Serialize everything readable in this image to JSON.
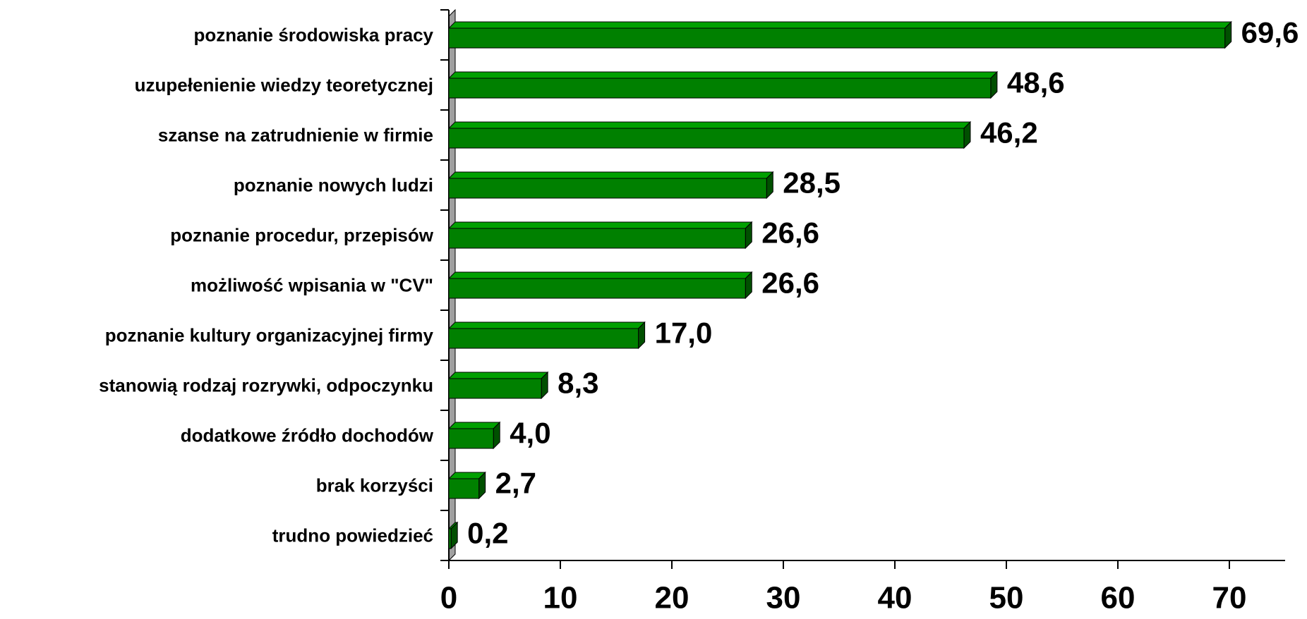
{
  "chart_data": {
    "type": "bar",
    "orientation": "horizontal",
    "categories": [
      "poznanie środowiska pracy",
      "uzupełenienie wiedzy teoretycznej",
      "szanse na zatrudnienie w firmie",
      "poznanie nowych ludzi",
      "poznanie procedur, przepisów",
      "możliwość wpisania w \"CV\"",
      "poznanie kultury organizacyjnej firmy",
      "stanowią rodzaj rozrywki, odpoczynku",
      "dodatkowe źródło dochodów",
      "brak korzyści",
      "trudno powiedzieć"
    ],
    "values": [
      69.6,
      48.6,
      46.2,
      28.5,
      26.6,
      26.6,
      17.0,
      8.3,
      4.0,
      2.7,
      0.2
    ],
    "value_labels": [
      "69,6",
      "48,6",
      "46,2",
      "28,5",
      "26,6",
      "26,6",
      "17,0",
      "8,3",
      "4,0",
      "2,7",
      "0,2"
    ],
    "color": "#008000",
    "xlim": [
      0,
      75
    ],
    "xticks": [
      0,
      10,
      20,
      30,
      40,
      50,
      60,
      70
    ],
    "grid": false
  }
}
